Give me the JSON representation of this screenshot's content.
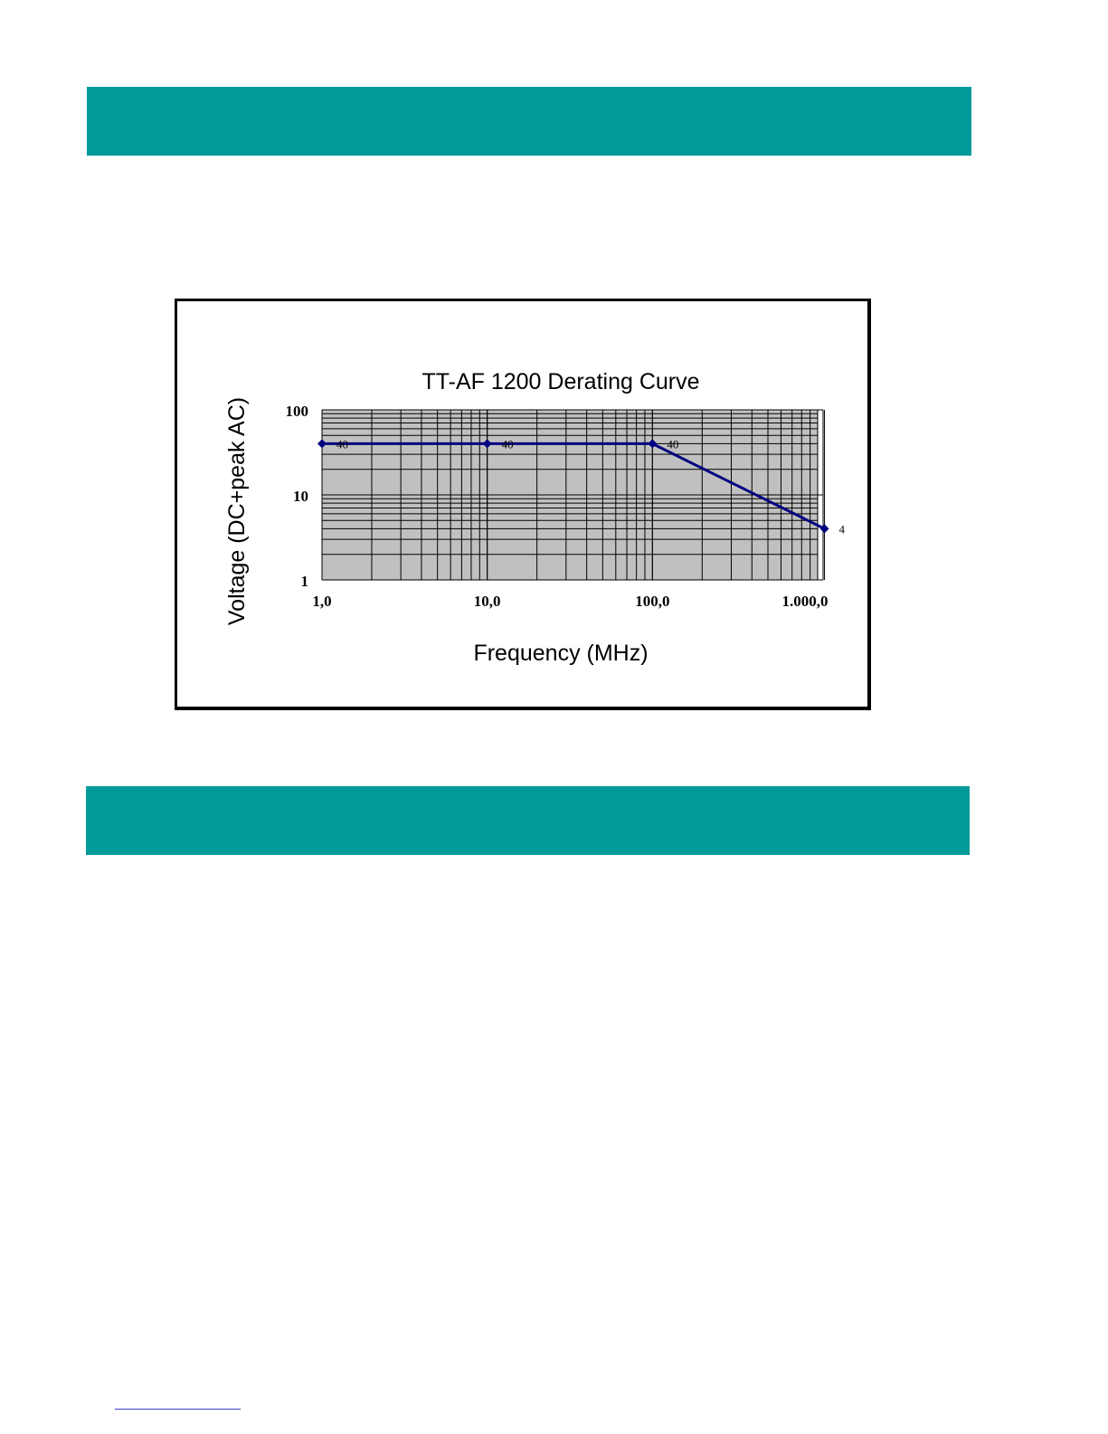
{
  "colors": {
    "band": "#009a98",
    "plot_bg": "#c0c0c0",
    "series": "#000080"
  },
  "chart_data": {
    "type": "line",
    "title": "TT-AF 1200 Derating Curve",
    "xlabel": "Frequency (MHz)",
    "ylabel": "Voltage (DC+peak AC)",
    "x_scale": "log",
    "y_scale": "log",
    "xlim": [
      1,
      1000
    ],
    "ylim": [
      1,
      100
    ],
    "x_ticks": [
      1,
      10,
      100,
      1000
    ],
    "x_tick_labels": [
      "1,0",
      "10,0",
      "100,0",
      "1.000,0"
    ],
    "y_ticks": [
      1,
      10,
      100
    ],
    "y_tick_labels": [
      "1",
      "10",
      "100"
    ],
    "grid": true,
    "legend": "none",
    "series": [
      {
        "x": [
          1,
          10,
          100,
          1100
        ],
        "y": [
          40,
          40,
          40,
          4
        ],
        "data_labels": [
          "40",
          "40",
          "40",
          "4"
        ]
      }
    ]
  }
}
